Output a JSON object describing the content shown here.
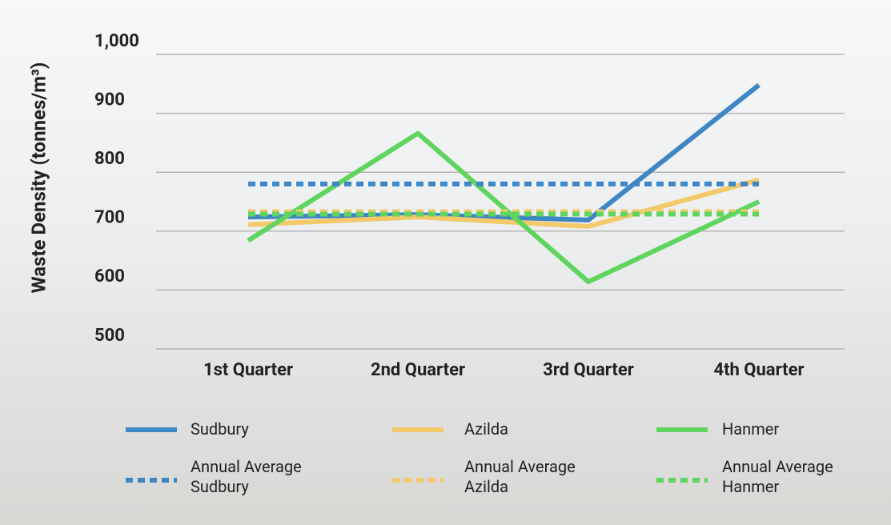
{
  "chart_data": {
    "type": "line",
    "y_label": "Waste Density (tonnes/m³)",
    "categories": [
      "1st Quarter",
      "2nd Quarter",
      "3rd Quarter",
      "4th Quarter"
    ],
    "series": [
      {
        "name": "Sudbury",
        "color": "#3e86c4",
        "dashed": false,
        "values": [
          724,
          728,
          719,
          948
        ]
      },
      {
        "name": "Azilda",
        "color": "#f3c96a",
        "dashed": false,
        "values": [
          711,
          724,
          708,
          787
        ]
      },
      {
        "name": "Hanmer",
        "color": "#5fd55f",
        "dashed": false,
        "values": [
          684,
          866,
          614,
          750
        ]
      },
      {
        "name": "Annual Average Sudbury",
        "color": "#3e86c4",
        "dashed": true,
        "values": [
          780,
          780,
          780,
          780
        ]
      },
      {
        "name": "Annual Average Azilda",
        "color": "#f3c96a",
        "dashed": true,
        "values": [
          733,
          733,
          733,
          733
        ]
      },
      {
        "name": "Annual Average Hanmer",
        "color": "#5fd55f",
        "dashed": true,
        "values": [
          729,
          729,
          729,
          729
        ]
      }
    ],
    "ylim": [
      500,
      1000
    ],
    "yticks": [
      500,
      600,
      700,
      800,
      900,
      {
        "value": 1000,
        "label": "1,000"
      }
    ],
    "grid": true
  }
}
